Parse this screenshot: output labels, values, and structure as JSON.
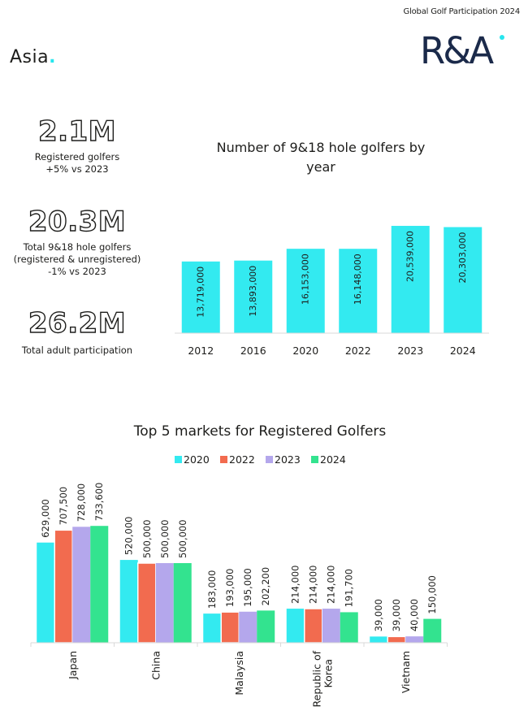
{
  "header": {
    "report_title": "Global Golf Participation 2024",
    "region": "Asia",
    "region_dot": ".",
    "logo_icon": "randa-logo-icon",
    "logo_text": "R&A"
  },
  "stats": [
    {
      "value": "2.1M",
      "label_lines": [
        "Registered golfers",
        "+5% vs 2023"
      ]
    },
    {
      "value": "20.3M",
      "label_lines": [
        "Total 9&18 hole golfers",
        "(registered & unregistered)",
        "-1% vs 2023"
      ]
    },
    {
      "value": "26.2M",
      "label_lines": [
        "Total adult participation"
      ]
    }
  ],
  "colors": {
    "cyan": "#33eaf0",
    "orange": "#f26b4f",
    "purple": "#b4a7ec",
    "green": "#33e38f",
    "axis": "#d9d9d9",
    "text": "#1d1d1b"
  },
  "chart_data": [
    {
      "type": "bar",
      "title": "Number of 9&18 hole golfers by year",
      "title_lines": [
        "Number of 9&18 hole golfers by",
        "year"
      ],
      "categories": [
        "2012",
        "2016",
        "2020",
        "2022",
        "2023",
        "2024"
      ],
      "values": [
        13719000,
        13893000,
        16153000,
        16148000,
        20539000,
        20303000
      ],
      "value_labels": [
        "13,719,000",
        "13,893,000",
        "16,153,000",
        "16,148,000",
        "20,539,000",
        "20,303,000"
      ],
      "ylim": [
        0,
        21000000
      ],
      "xlabel": "",
      "ylabel": ""
    },
    {
      "type": "bar",
      "title": "Top 5 markets for Registered Golfers",
      "categories": [
        "Japan",
        "China",
        "Malaysia",
        "Republic of Korea",
        "Vietnam"
      ],
      "category_lines": [
        [
          "Japan"
        ],
        [
          "China"
        ],
        [
          "Malaysia"
        ],
        [
          "Republic of",
          "Korea"
        ],
        [
          "Vietnam"
        ]
      ],
      "series": [
        {
          "name": "2020",
          "values": [
            629000,
            520000,
            183000,
            214000,
            39000
          ],
          "labels": [
            "629,000",
            "520,000",
            "183,000",
            "214,000",
            "39,000"
          ]
        },
        {
          "name": "2022",
          "values": [
            707500,
            500000,
            193000,
            214000,
            39000
          ],
          "labels": [
            "707,500",
            "500,000",
            "193,000",
            "214,000",
            "39,000"
          ]
        },
        {
          "name": "2023",
          "values": [
            728000,
            500000,
            195000,
            214000,
            40000
          ],
          "labels": [
            "728,000",
            "500,000",
            "195,000",
            "214,000",
            "40,000"
          ]
        },
        {
          "name": "2024",
          "values": [
            733600,
            500000,
            202200,
            191700,
            150000
          ],
          "labels": [
            "733,600",
            "500,000",
            "202,200",
            "191,700",
            "150,000"
          ]
        }
      ],
      "ylim": [
        0,
        1000000
      ],
      "legend": "top-center",
      "xlabel": "",
      "ylabel": ""
    }
  ]
}
